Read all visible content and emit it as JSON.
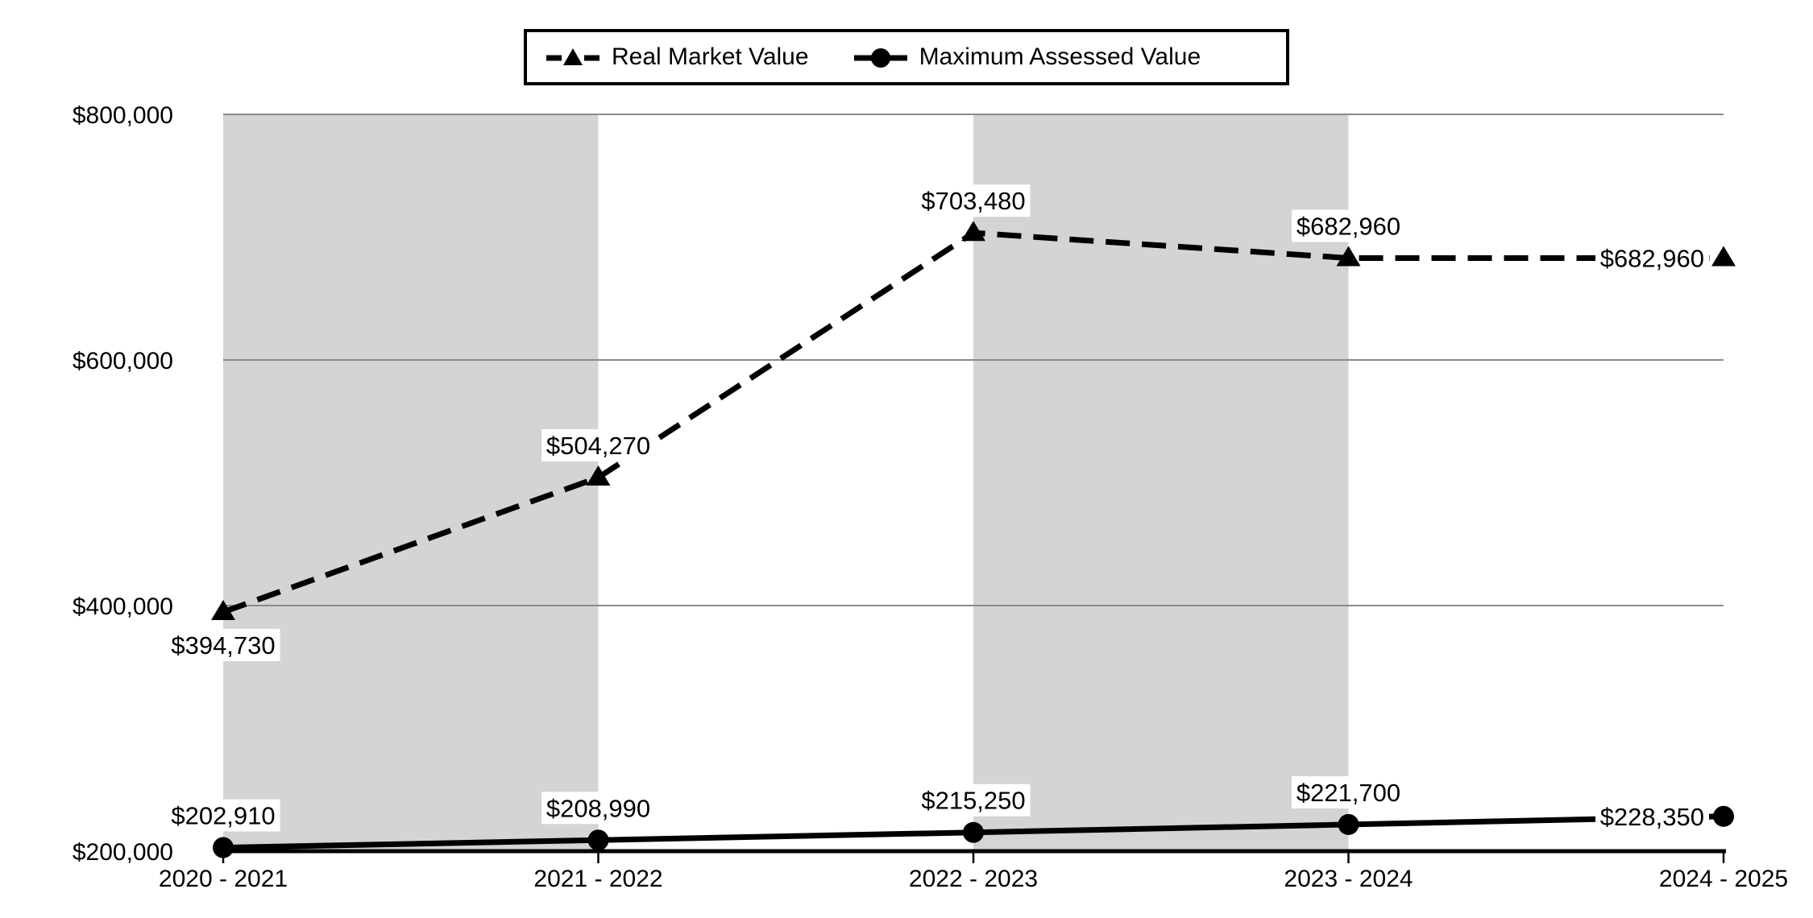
{
  "legend": {
    "items": [
      {
        "label": "Real Market Value"
      },
      {
        "label": "Maximum Assessed Value"
      }
    ]
  },
  "chart_data": {
    "type": "line",
    "title": "",
    "categories": [
      "2020 - 2021",
      "2021 - 2022",
      "2022 - 2023",
      "2023 - 2024",
      "2024 - 2025"
    ],
    "series": [
      {
        "name": "Real Market Value",
        "line_style": "dashed",
        "marker": "triangle",
        "values": [
          394730,
          504270,
          703480,
          682960,
          682960
        ],
        "data_labels": [
          "$394,730",
          "$504,270",
          "$703,480",
          "$682,960",
          "$682,960"
        ],
        "label_placement": [
          "below",
          "above",
          "above",
          "above",
          "left"
        ]
      },
      {
        "name": "Maximum Assessed Value",
        "line_style": "solid",
        "marker": "circle",
        "values": [
          202910,
          208990,
          215250,
          221700,
          228350
        ],
        "data_labels": [
          "$202,910",
          "$208,990",
          "$215,250",
          "$221,700",
          "$228,350"
        ],
        "label_placement": [
          "above",
          "above",
          "above",
          "above",
          "left"
        ]
      }
    ],
    "y_axis": {
      "min": 200000,
      "max": 800000,
      "step": 200000,
      "tick_labels": [
        "$200,000",
        "$400,000",
        "$600,000",
        "$800,000"
      ]
    },
    "shaded_bands": [
      [
        0,
        1
      ],
      [
        2,
        3
      ]
    ],
    "grid": true,
    "legend_position": "top",
    "colors": {
      "series": "#000000",
      "band": "#d4d4d4",
      "gridline": "#8a8a8a",
      "axis": "#000000",
      "label_bg": "#ffffff",
      "text": "#000000"
    }
  }
}
